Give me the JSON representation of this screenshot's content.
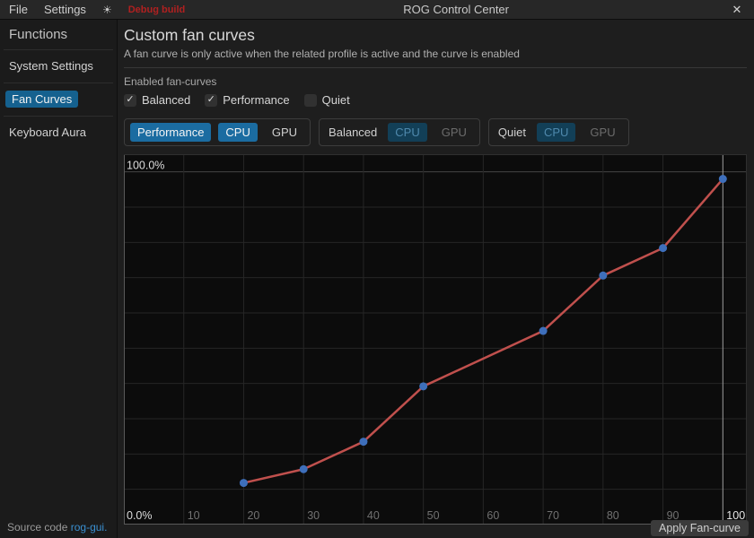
{
  "titlebar": {
    "menu_file": "File",
    "menu_settings": "Settings",
    "theme_icon": "sun-icon",
    "theme_glyph": "☀",
    "debug_label": "Debug build",
    "title": "ROG Control Center",
    "close_glyph": "✕"
  },
  "sidebar": {
    "heading": "Functions",
    "items": [
      {
        "label": "System Settings",
        "selected": false
      },
      {
        "label": "Fan Curves",
        "selected": true
      },
      {
        "label": "Keyboard Aura",
        "selected": false
      }
    ],
    "footer": {
      "text": "Source code",
      "link": "rog-gui."
    }
  },
  "main": {
    "title": "Custom fan curves",
    "subtitle": "A fan curve is only active when the related profile is active and the curve is enabled",
    "enabled_label": "Enabled fan-curves",
    "checkboxes": [
      {
        "label": "Balanced",
        "checked": true
      },
      {
        "label": "Performance",
        "checked": true
      },
      {
        "label": "Quiet",
        "checked": false
      }
    ],
    "profile_groups": [
      {
        "profile": "Performance",
        "active": true,
        "fans": [
          "CPU",
          "GPU"
        ],
        "selected_fan": "CPU"
      },
      {
        "profile": "Balanced",
        "active": false,
        "fans": [
          "CPU",
          "GPU"
        ],
        "selected_fan": "CPU"
      },
      {
        "profile": "Quiet",
        "active": false,
        "fans": [
          "CPU",
          "GPU"
        ],
        "selected_fan": "CPU"
      }
    ],
    "apply_button": "Apply Fan-curve"
  },
  "colors": {
    "accent_blue": "#1b6ca1",
    "selected_sidebar_blue": "#15618f",
    "dim_chip_bg": "#123f57",
    "dim_chip_text": "#4f89ad",
    "link_blue": "#3a8fd0",
    "debug_red": "#b02020",
    "curve_line_red": "#c0504d",
    "curve_point_blue": "#3e6fbb"
  },
  "chart_data": {
    "type": "line",
    "title": "",
    "xlabel": "",
    "ylabel": "",
    "x": [
      20,
      30,
      40,
      50,
      70,
      80,
      90,
      100
    ],
    "series": [
      {
        "name": "Performance CPU fan curve",
        "values": [
          11.8,
          15.7,
          23.5,
          39.2,
          54.9,
          70.6,
          78.4,
          98.0
        ]
      }
    ],
    "x_tick_labels": [
      10,
      20,
      30,
      40,
      50,
      60,
      70,
      80,
      90,
      100
    ],
    "y_grid_step": 10,
    "y_axis_label_top": "100.0%",
    "y_axis_label_bottom": "0.0%",
    "xlim": [
      0,
      104
    ],
    "ylim": [
      0,
      105
    ],
    "grid": true,
    "legend": "none",
    "line_color": "#c0504d",
    "point_color": "#3e6fbb"
  }
}
